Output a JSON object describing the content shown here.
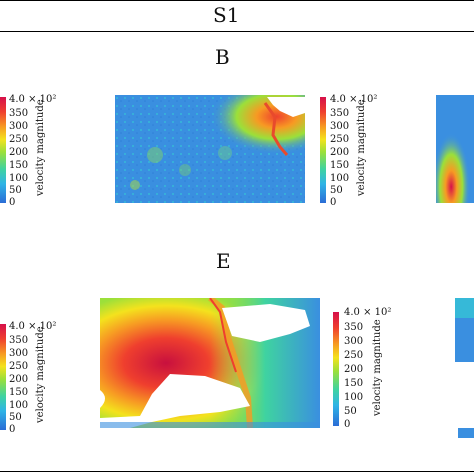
{
  "header": {
    "title": "S1"
  },
  "panels": [
    {
      "label": "B"
    },
    {
      "label": "E"
    }
  ],
  "colorbar": {
    "title": "velocity magnitude",
    "top_label": "4.0 × 10²",
    "ticks": [
      "350",
      "300",
      "250",
      "200",
      "150",
      "100",
      "50",
      "0"
    ]
  },
  "colors": {
    "low": "#2b6cd6",
    "mid": "#f4e21d",
    "high": "#d6104a",
    "void": "#ffffff"
  }
}
